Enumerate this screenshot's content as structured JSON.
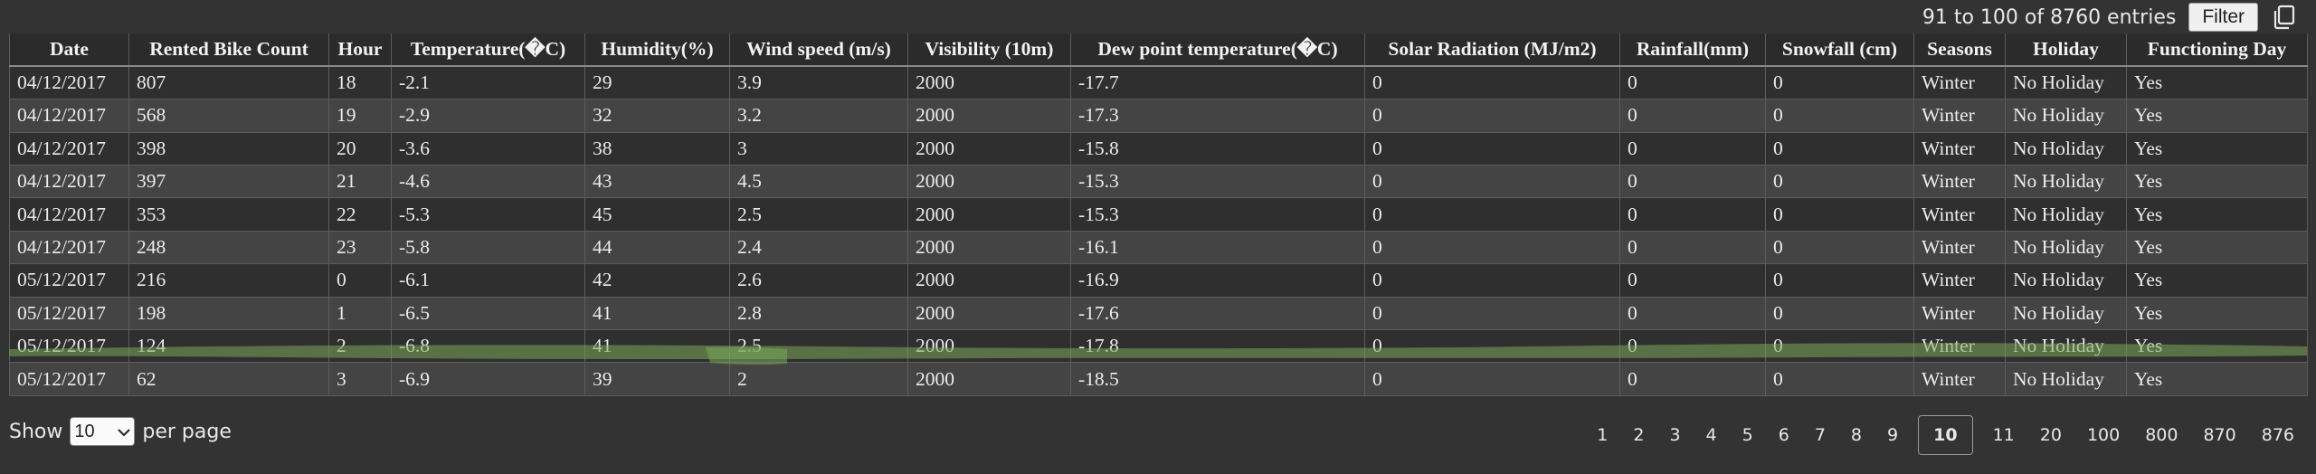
{
  "toolbar": {
    "entries_text": "91 to 100 of 8760 entries",
    "filter_label": "Filter",
    "copy_icon": "copy-icon"
  },
  "table": {
    "columns": [
      "Date",
      "Rented Bike Count",
      "Hour",
      "Temperature(�C)",
      "Humidity(%)",
      "Wind speed (m/s)",
      "Visibility (10m)",
      "Dew point temperature(�C)",
      "Solar Radiation (MJ/m2)",
      "Rainfall(mm)",
      "Snowfall (cm)",
      "Seasons",
      "Holiday",
      "Functioning Day"
    ],
    "rows": [
      [
        "04/12/2017",
        "807",
        "18",
        "-2.1",
        "29",
        "3.9",
        "2000",
        "-17.7",
        "0",
        "0",
        "0",
        "Winter",
        "No Holiday",
        "Yes"
      ],
      [
        "04/12/2017",
        "568",
        "19",
        "-2.9",
        "32",
        "3.2",
        "2000",
        "-17.3",
        "0",
        "0",
        "0",
        "Winter",
        "No Holiday",
        "Yes"
      ],
      [
        "04/12/2017",
        "398",
        "20",
        "-3.6",
        "38",
        "3",
        "2000",
        "-15.8",
        "0",
        "0",
        "0",
        "Winter",
        "No Holiday",
        "Yes"
      ],
      [
        "04/12/2017",
        "397",
        "21",
        "-4.6",
        "43",
        "4.5",
        "2000",
        "-15.3",
        "0",
        "0",
        "0",
        "Winter",
        "No Holiday",
        "Yes"
      ],
      [
        "04/12/2017",
        "353",
        "22",
        "-5.3",
        "45",
        "2.5",
        "2000",
        "-15.3",
        "0",
        "0",
        "0",
        "Winter",
        "No Holiday",
        "Yes"
      ],
      [
        "04/12/2017",
        "248",
        "23",
        "-5.8",
        "44",
        "2.4",
        "2000",
        "-16.1",
        "0",
        "0",
        "0",
        "Winter",
        "No Holiday",
        "Yes"
      ],
      [
        "05/12/2017",
        "216",
        "0",
        "-6.1",
        "42",
        "2.6",
        "2000",
        "-16.9",
        "0",
        "0",
        "0",
        "Winter",
        "No Holiday",
        "Yes"
      ],
      [
        "05/12/2017",
        "198",
        "1",
        "-6.5",
        "41",
        "2.8",
        "2000",
        "-17.6",
        "0",
        "0",
        "0",
        "Winter",
        "No Holiday",
        "Yes"
      ],
      [
        "05/12/2017",
        "124",
        "2",
        "-6.8",
        "41",
        "2.5",
        "2000",
        "-17.8",
        "0",
        "0",
        "0",
        "Winter",
        "No Holiday",
        "Yes"
      ],
      [
        "05/12/2017",
        "62",
        "3",
        "-6.9",
        "39",
        "2",
        "2000",
        "-18.5",
        "0",
        "0",
        "0",
        "Winter",
        "No Holiday",
        "Yes"
      ]
    ],
    "highlight_color": "#7aa85a"
  },
  "footer": {
    "show_label": "Show",
    "page_size": "10",
    "per_page_label": "per page",
    "pages": [
      "1",
      "2",
      "3",
      "4",
      "5",
      "6",
      "7",
      "8",
      "9",
      "10",
      "11",
      "20",
      "100",
      "800",
      "870",
      "876"
    ],
    "current_page": "10"
  }
}
